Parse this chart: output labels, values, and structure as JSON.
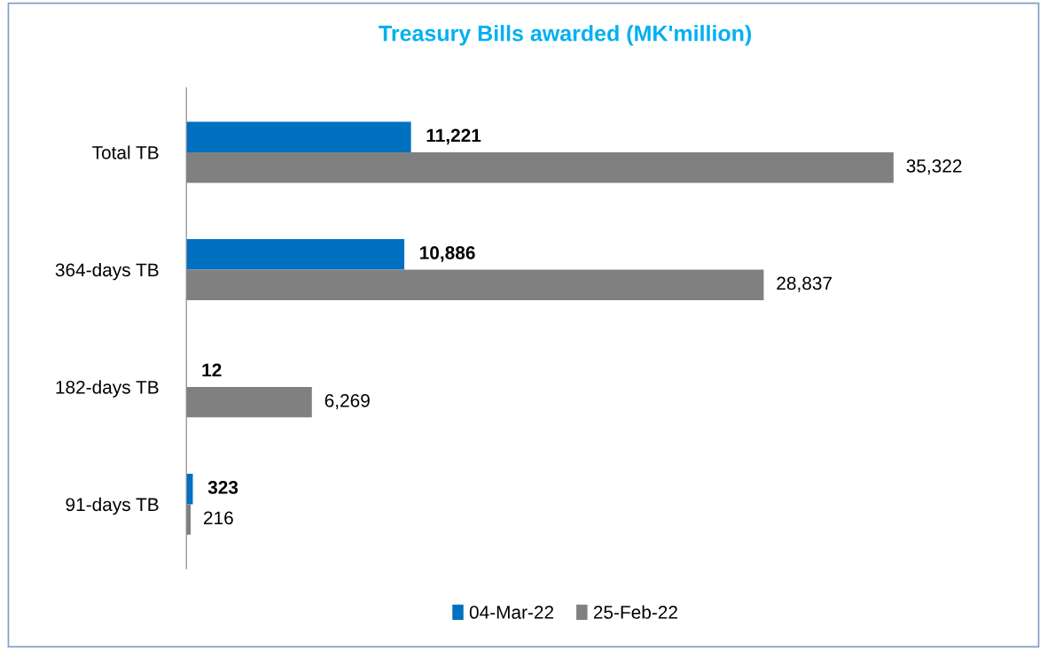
{
  "chart_data": {
    "type": "bar",
    "orientation": "horizontal",
    "title": "Treasury Bills awarded (MK'million)",
    "categories": [
      "Total TB",
      "364-days TB",
      "182-days TB",
      "91-days TB"
    ],
    "series": [
      {
        "name": "04-Mar-22",
        "color": "#0070c0",
        "values": [
          11221,
          10886,
          12,
          323
        ],
        "value_labels": [
          "11,221",
          "10,886",
          "12",
          "323"
        ]
      },
      {
        "name": "25-Feb-22",
        "color": "#808080",
        "values": [
          35322,
          28837,
          6269,
          216
        ],
        "value_labels": [
          "35,322",
          "28,837",
          "6,269",
          "216"
        ]
      }
    ],
    "legend": "bottom",
    "grid": false,
    "tick_labels": "y"
  }
}
